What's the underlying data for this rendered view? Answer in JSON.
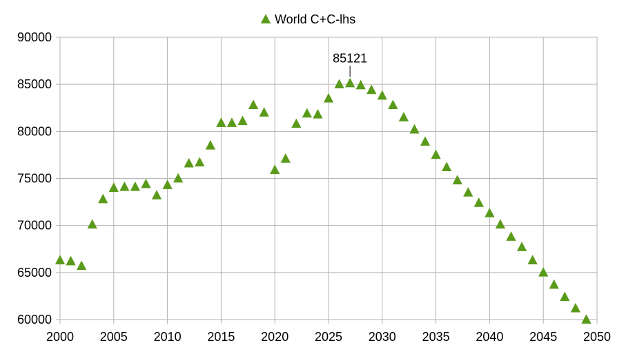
{
  "chart_data": {
    "type": "scatter",
    "series": [
      {
        "name": "World C+C-lhs",
        "color": "#5a9a1a",
        "marker": "triangle",
        "points": [
          [
            2000,
            66300
          ],
          [
            2001,
            66200
          ],
          [
            2002,
            65700
          ],
          [
            2003,
            70100
          ],
          [
            2004,
            72800
          ],
          [
            2005,
            74000
          ],
          [
            2006,
            74100
          ],
          [
            2007,
            74100
          ],
          [
            2008,
            74400
          ],
          [
            2009,
            73200
          ],
          [
            2010,
            74300
          ],
          [
            2011,
            75000
          ],
          [
            2012,
            76600
          ],
          [
            2013,
            76700
          ],
          [
            2014,
            78500
          ],
          [
            2015,
            80900
          ],
          [
            2016,
            80900
          ],
          [
            2017,
            81100
          ],
          [
            2018,
            82800
          ],
          [
            2019,
            82000
          ],
          [
            2020,
            75900
          ],
          [
            2021,
            77100
          ],
          [
            2022,
            80800
          ],
          [
            2023,
            81900
          ],
          [
            2024,
            81800
          ],
          [
            2025,
            83500
          ],
          [
            2026,
            85000
          ],
          [
            2027,
            85121
          ],
          [
            2028,
            84900
          ],
          [
            2029,
            84400
          ],
          [
            2030,
            83800
          ],
          [
            2031,
            82800
          ],
          [
            2032,
            81500
          ],
          [
            2033,
            80200
          ],
          [
            2034,
            78900
          ],
          [
            2035,
            77500
          ],
          [
            2036,
            76200
          ],
          [
            2037,
            74800
          ],
          [
            2038,
            73500
          ],
          [
            2039,
            72400
          ],
          [
            2040,
            71300
          ],
          [
            2041,
            70100
          ],
          [
            2042,
            68800
          ],
          [
            2043,
            67700
          ],
          [
            2044,
            66300
          ],
          [
            2045,
            65000
          ],
          [
            2046,
            63700
          ],
          [
            2047,
            62400
          ],
          [
            2048,
            61200
          ],
          [
            2049,
            60000
          ]
        ]
      }
    ],
    "annotation": {
      "x": 2027,
      "y": 85121,
      "text": "85121"
    },
    "xlim": [
      2000,
      2050
    ],
    "ylim": [
      60000,
      90000
    ],
    "xticks": [
      "2000",
      "2005",
      "2010",
      "2015",
      "2020",
      "2025",
      "2030",
      "2035",
      "2040",
      "2045",
      "2050"
    ],
    "yticks": [
      "60000",
      "65000",
      "70000",
      "75000",
      "80000",
      "85000",
      "90000"
    ],
    "grid": true,
    "legend_position": "top"
  }
}
